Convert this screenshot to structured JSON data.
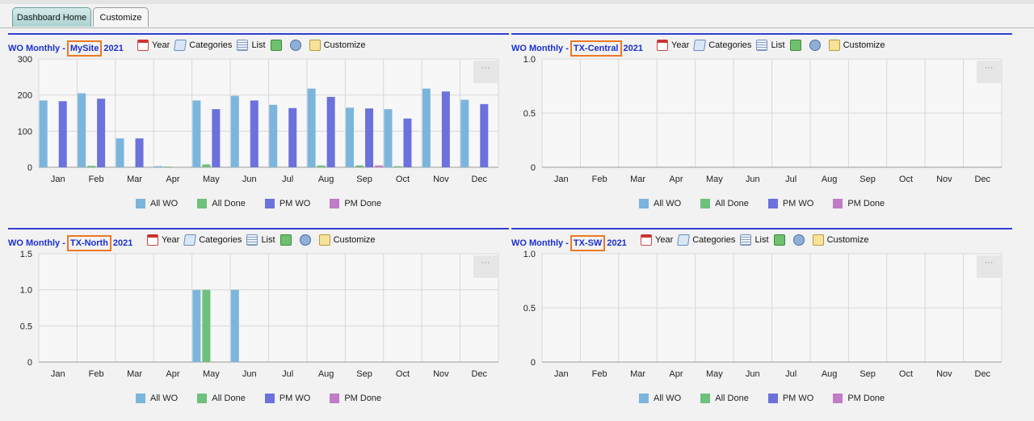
{
  "tabs": [
    {
      "label": "Dashboard Home",
      "active": true
    },
    {
      "label": "Customize",
      "active": false
    }
  ],
  "toolbar": {
    "year_label": "Year",
    "categories_label": "Categories",
    "list_label": "List",
    "customize_label": "Customize",
    "menu_glyph": "···"
  },
  "colors": {
    "all_wo": "#7cb5dc",
    "all_done": "#6fc07c",
    "pm_wo": "#6b72dc",
    "pm_done": "#c07cc6",
    "highlight_box": "#ee7722",
    "title_blue": "#1a2fd0"
  },
  "legend": [
    "All WO",
    "All Done",
    "PM WO",
    "PM Done"
  ],
  "panels": [
    {
      "title_prefix": "WO Monthly -",
      "site": "MySite",
      "year": "2021"
    },
    {
      "title_prefix": "WO Monthly -",
      "site": "TX-Central",
      "year": "2021"
    },
    {
      "title_prefix": "WO Monthly -",
      "site": "TX-North",
      "year": "2021"
    },
    {
      "title_prefix": "WO Monthly -",
      "site": "TX-SW",
      "year": "2021"
    }
  ],
  "chart_data": [
    {
      "type": "bar",
      "categories": [
        "Jan",
        "Feb",
        "Mar",
        "Apr",
        "May",
        "Jun",
        "Jul",
        "Aug",
        "Sep",
        "Oct",
        "Nov",
        "Dec"
      ],
      "ylim": [
        0,
        300
      ],
      "yticks": [
        "0",
        "100",
        "200",
        "300"
      ],
      "grid": true,
      "legend_position": "bottom",
      "series": [
        {
          "name": "All WO",
          "values": [
            185,
            205,
            80,
            3,
            185,
            198,
            173,
            218,
            165,
            161,
            218,
            187
          ]
        },
        {
          "name": "All Done",
          "values": [
            0,
            4,
            0,
            2,
            8,
            0,
            0,
            5,
            5,
            3,
            0,
            0
          ]
        },
        {
          "name": "PM WO",
          "values": [
            183,
            190,
            80,
            0,
            161,
            185,
            164,
            195,
            163,
            135,
            210,
            175
          ]
        },
        {
          "name": "PM Done",
          "values": [
            0,
            0,
            0,
            0,
            0,
            0,
            0,
            0,
            5,
            0,
            0,
            0
          ]
        }
      ]
    },
    {
      "type": "bar",
      "categories": [
        "Jan",
        "Feb",
        "Mar",
        "Apr",
        "May",
        "Jun",
        "Jul",
        "Aug",
        "Sep",
        "Oct",
        "Nov",
        "Dec"
      ],
      "ylim": [
        0,
        1
      ],
      "yticks": [
        "0",
        "0.5",
        "1.0"
      ],
      "grid": true,
      "legend_position": "bottom",
      "series": [
        {
          "name": "All WO",
          "values": [
            0,
            0,
            0,
            0,
            0,
            0,
            0,
            0,
            0,
            0,
            0,
            0
          ]
        },
        {
          "name": "All Done",
          "values": [
            0,
            0,
            0,
            0,
            0,
            0,
            0,
            0,
            0,
            0,
            0,
            0
          ]
        },
        {
          "name": "PM WO",
          "values": [
            0,
            0,
            0,
            0,
            0,
            0,
            0,
            0,
            0,
            0,
            0,
            0
          ]
        },
        {
          "name": "PM Done",
          "values": [
            0,
            0,
            0,
            0,
            0,
            0,
            0,
            0,
            0,
            0,
            0,
            0
          ]
        }
      ]
    },
    {
      "type": "bar",
      "categories": [
        "Jan",
        "Feb",
        "Mar",
        "Apr",
        "May",
        "Jun",
        "Jul",
        "Aug",
        "Sep",
        "Oct",
        "Nov",
        "Dec"
      ],
      "ylim": [
        0,
        1.5
      ],
      "yticks": [
        "0",
        "0.5",
        "1.0",
        "1.5"
      ],
      "grid": true,
      "legend_position": "bottom",
      "series": [
        {
          "name": "All WO",
          "values": [
            0,
            0,
            0,
            0,
            1,
            1,
            0,
            0,
            0,
            0,
            0,
            0
          ]
        },
        {
          "name": "All Done",
          "values": [
            0,
            0,
            0,
            0,
            1,
            0,
            0,
            0,
            0,
            0,
            0,
            0
          ]
        },
        {
          "name": "PM WO",
          "values": [
            0,
            0,
            0,
            0,
            0,
            0,
            0,
            0,
            0,
            0,
            0,
            0
          ]
        },
        {
          "name": "PM Done",
          "values": [
            0,
            0,
            0,
            0,
            0,
            0,
            0,
            0,
            0,
            0,
            0,
            0
          ]
        }
      ]
    },
    {
      "type": "bar",
      "categories": [
        "Jan",
        "Feb",
        "Mar",
        "Apr",
        "May",
        "Jun",
        "Jul",
        "Aug",
        "Sep",
        "Oct",
        "Nov",
        "Dec"
      ],
      "ylim": [
        0,
        1
      ],
      "yticks": [
        "0",
        "0.5",
        "1.0"
      ],
      "grid": true,
      "legend_position": "bottom",
      "series": [
        {
          "name": "All WO",
          "values": [
            0,
            0,
            0,
            0,
            0,
            0,
            0,
            0,
            0,
            0,
            0,
            0
          ]
        },
        {
          "name": "All Done",
          "values": [
            0,
            0,
            0,
            0,
            0,
            0,
            0,
            0,
            0,
            0,
            0,
            0
          ]
        },
        {
          "name": "PM WO",
          "values": [
            0,
            0,
            0,
            0,
            0,
            0,
            0,
            0,
            0,
            0,
            0,
            0
          ]
        },
        {
          "name": "PM Done",
          "values": [
            0,
            0,
            0,
            0,
            0,
            0,
            0,
            0,
            0,
            0,
            0,
            0
          ]
        }
      ]
    }
  ]
}
